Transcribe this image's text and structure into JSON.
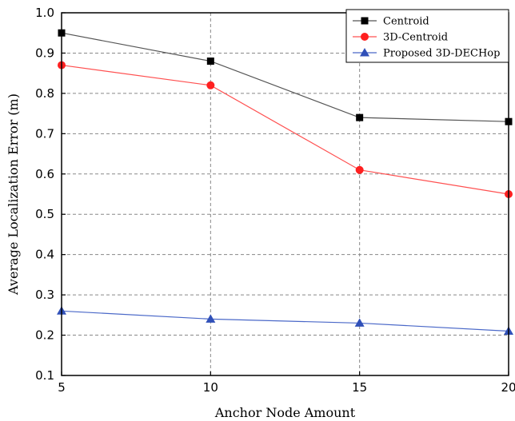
{
  "chart_data": {
    "type": "line",
    "x": [
      5,
      10,
      15,
      20
    ],
    "xlabel": "Anchor Node Amount",
    "ylabel": "Average Localization Error (m)",
    "xlim": [
      5,
      20
    ],
    "ylim": [
      0.1,
      1.0
    ],
    "xticks": [
      "5",
      "10",
      "15",
      "20"
    ],
    "yticks": [
      "0.1",
      "0.2",
      "0.3",
      "0.4",
      "0.5",
      "0.6",
      "0.7",
      "0.8",
      "0.9",
      "1.0"
    ],
    "grid": true,
    "legend_position": "top-right",
    "series": [
      {
        "name": "Centroid",
        "values": [
          0.95,
          0.88,
          0.74,
          0.73
        ],
        "color": "#000000",
        "line_color": "#555555",
        "marker": "square"
      },
      {
        "name": "3D-Centroid",
        "values": [
          0.87,
          0.82,
          0.61,
          0.55
        ],
        "color": "#ff2020",
        "line_color": "#ff5050",
        "marker": "circle"
      },
      {
        "name": "Proposed 3D-DECHop",
        "values": [
          0.26,
          0.24,
          0.23,
          0.21
        ],
        "color": "#3050b8",
        "line_color": "#4a68c8",
        "marker": "triangle"
      }
    ]
  }
}
